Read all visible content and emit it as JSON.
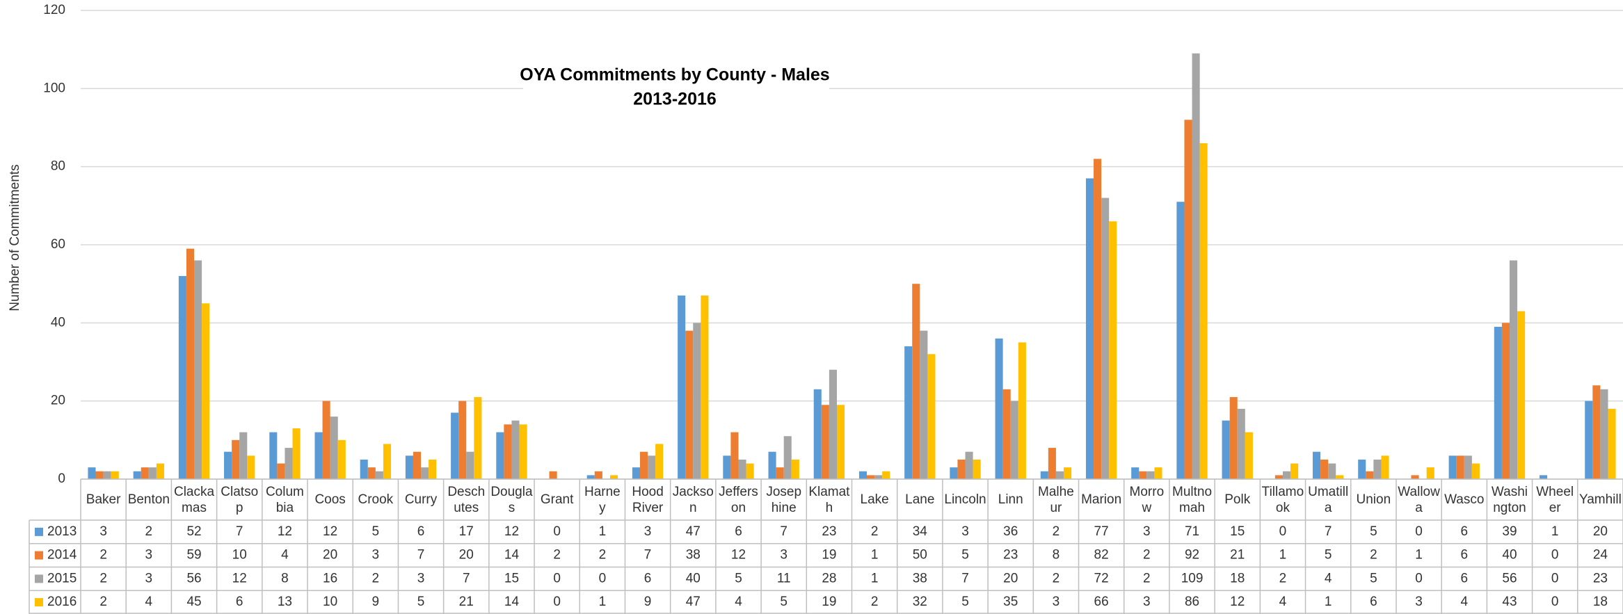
{
  "chart_data": {
    "type": "bar",
    "title": "OYA Commitments by County - Males",
    "subtitle": "2013-2016",
    "ylabel": "Number of Commitments",
    "categories": [
      "Baker",
      "Benton",
      "Clackamas",
      "Clatsop",
      "Columbia",
      "Coos",
      "Crook",
      "Curry",
      "Deschutes",
      "Douglas",
      "Grant",
      "Harney",
      "Hood River",
      "Jackson",
      "Jefferson",
      "Josephine",
      "Klamath",
      "Lake",
      "Lane",
      "Lincoln",
      "Linn",
      "Malheur",
      "Marion",
      "Morrow",
      "Multnomah",
      "Polk",
      "Tillamook",
      "Umatilla",
      "Union",
      "Wallowa",
      "Wasco",
      "Washington",
      "Wheeler",
      "Yamhill"
    ],
    "series": [
      {
        "name": "2013",
        "color": "#5b9bd5",
        "values": [
          3,
          2,
          52,
          7,
          12,
          12,
          5,
          6,
          17,
          12,
          0,
          1,
          3,
          47,
          6,
          7,
          23,
          2,
          34,
          3,
          36,
          2,
          77,
          3,
          71,
          15,
          0,
          7,
          5,
          0,
          6,
          39,
          1,
          20
        ]
      },
      {
        "name": "2014",
        "color": "#ed7d31",
        "values": [
          2,
          3,
          59,
          10,
          4,
          20,
          3,
          7,
          20,
          14,
          2,
          2,
          7,
          38,
          12,
          3,
          19,
          1,
          50,
          5,
          23,
          8,
          82,
          2,
          92,
          21,
          1,
          5,
          2,
          1,
          6,
          40,
          0,
          24
        ]
      },
      {
        "name": "2015",
        "color": "#a5a5a5",
        "values": [
          2,
          3,
          56,
          12,
          8,
          16,
          2,
          3,
          7,
          15,
          0,
          0,
          6,
          40,
          5,
          11,
          28,
          1,
          38,
          7,
          20,
          2,
          72,
          2,
          109,
          18,
          2,
          4,
          5,
          0,
          6,
          56,
          0,
          23
        ]
      },
      {
        "name": "2016",
        "color": "#ffc000",
        "values": [
          2,
          4,
          45,
          6,
          13,
          10,
          9,
          5,
          21,
          14,
          0,
          1,
          9,
          47,
          4,
          5,
          19,
          2,
          32,
          5,
          35,
          3,
          66,
          3,
          86,
          12,
          4,
          1,
          6,
          3,
          4,
          43,
          0,
          18
        ]
      }
    ],
    "ylim": [
      0,
      120
    ],
    "yticks": [
      0,
      20,
      40,
      60,
      80,
      100,
      120
    ],
    "grid": true,
    "data_table": true
  }
}
